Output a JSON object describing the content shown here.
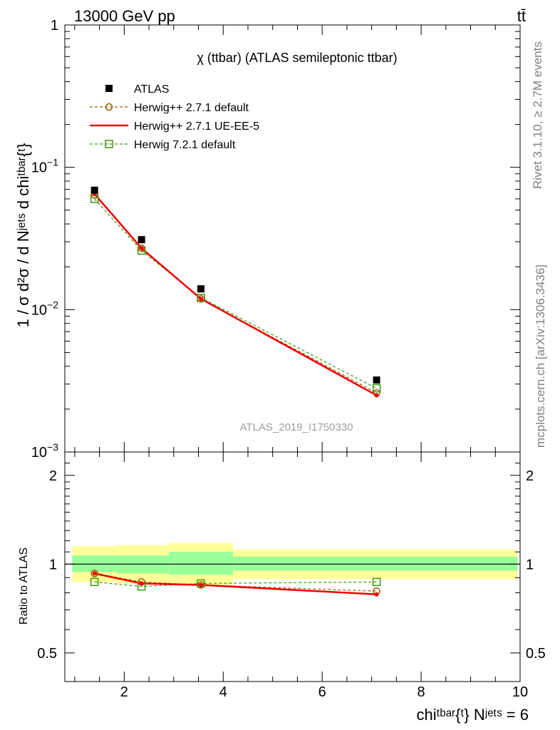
{
  "header": {
    "energy_label": "13000 GeV pp",
    "process_label": "tt̄"
  },
  "side_labels": {
    "rivet": "Rivet 3.1.10, ≥ 2.7M events",
    "mcplots": "mcplots.cern.ch [arXiv:1306.3436]"
  },
  "plot_title": "χ (ttbar) (ATLAS semileptonic ttbar)",
  "watermark": "ATLAS_2019_I1750330",
  "axes": {
    "y_main_label": "1 / σ d²σ / d Nʲᵉᵗˢ d chiᵗᵇᵃʳ{ᵗ}",
    "y_ratio_label": "Ratio to ATLAS",
    "x_label": "chiᵗᵇᵃʳ{ᵗ} Nʲᵉᵗˢ = 6"
  },
  "legend": [
    {
      "label": "ATLAS",
      "style": "data"
    },
    {
      "label": "Herwig++ 2.7.1 default",
      "style": "circle-dashed"
    },
    {
      "label": "Herwig++ 2.7.1 UE-EE-5",
      "style": "solid"
    },
    {
      "label": "Herwig 7.2.1 default",
      "style": "square-dashed"
    }
  ],
  "chart_data": {
    "type": "line",
    "x_range": [
      0.8,
      10.0
    ],
    "x_ticks": [
      2,
      4,
      6,
      8,
      10
    ],
    "main": {
      "y_scale": "log",
      "y_range": [
        0.001,
        1
      ],
      "y_ticks": [
        {
          "value": 1,
          "label": "1",
          "exp": ""
        },
        {
          "value": 0.1,
          "label": "10",
          "exp": "−1"
        },
        {
          "value": 0.01,
          "label": "10",
          "exp": "−2"
        },
        {
          "value": 0.001,
          "label": "10",
          "exp": "−3"
        }
      ],
      "x": [
        1.4,
        2.35,
        3.55,
        7.1
      ],
      "series": [
        {
          "name": "ATLAS",
          "values": [
            0.069,
            0.031,
            0.014,
            0.0032
          ],
          "color": "#000000"
        },
        {
          "name": "Herwig++ 2.7.1 default",
          "values": [
            0.064,
            0.027,
            0.0119,
            0.0026
          ],
          "color": "#a05a00"
        },
        {
          "name": "Herwig++ 2.7.1 UE-EE-5",
          "values": [
            0.065,
            0.027,
            0.0119,
            0.0025
          ],
          "color": "#ee0000"
        },
        {
          "name": "Herwig 7.2.1 default",
          "values": [
            0.06,
            0.026,
            0.0121,
            0.0028
          ],
          "color": "#3a9a10"
        }
      ]
    },
    "ratio": {
      "y_scale": "log",
      "y_range": [
        0.4,
        2.4
      ],
      "y_ticks": [
        {
          "value": 0.5,
          "label": "0.5"
        },
        {
          "value": 1,
          "label": "1"
        },
        {
          "value": 2,
          "label": "2"
        }
      ],
      "bands": [
        {
          "x_lo": 0.95,
          "x_hi": 1.85,
          "inner": [
            0.94,
            1.07
          ],
          "outer": [
            0.87,
            1.15
          ]
        },
        {
          "x_lo": 1.85,
          "x_hi": 2.9,
          "inner": [
            0.93,
            1.07
          ],
          "outer": [
            0.86,
            1.16
          ]
        },
        {
          "x_lo": 2.9,
          "x_hi": 4.2,
          "inner": [
            0.92,
            1.1
          ],
          "outer": [
            0.85,
            1.18
          ]
        },
        {
          "x_lo": 4.2,
          "x_hi": 9.95,
          "inner": [
            0.95,
            1.06
          ],
          "outer": [
            0.89,
            1.12
          ]
        }
      ],
      "series": [
        {
          "name": "Herwig++ 2.7.1 default",
          "values": [
            0.93,
            0.87,
            0.85,
            0.81
          ]
        },
        {
          "name": "Herwig++ 2.7.1 UE-EE-5",
          "values": [
            0.93,
            0.86,
            0.85,
            0.79
          ]
        },
        {
          "name": "Herwig 7.2.1 default",
          "values": [
            0.87,
            0.84,
            0.86,
            0.87
          ]
        }
      ]
    },
    "band_colors": {
      "inner": "#99ff99",
      "outer": "#ffff99"
    }
  }
}
